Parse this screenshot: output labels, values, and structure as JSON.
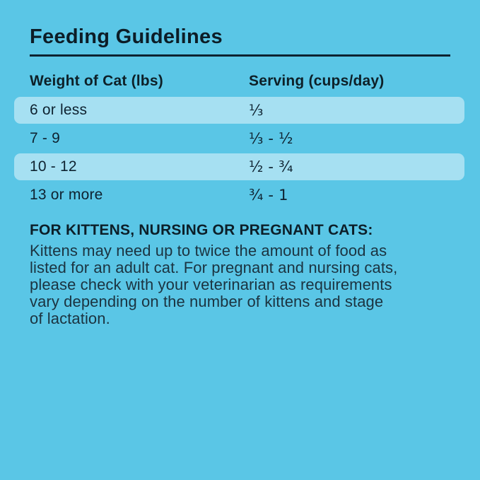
{
  "page": {
    "title": "Feeding Guidelines"
  },
  "table": {
    "headers": {
      "weight": "Weight of Cat (lbs)",
      "serving": "Serving (cups/day)"
    },
    "rows": [
      {
        "weight": "6 or less",
        "serving": "⅓"
      },
      {
        "weight": "7 - 9",
        "serving": "⅓ - ½"
      },
      {
        "weight": "10 - 12",
        "serving": "½ - ¾"
      },
      {
        "weight": "13 or more",
        "serving": "¾ - 1"
      }
    ]
  },
  "note": {
    "heading": "FOR KITTENS, NURSING OR PREGNANT CATS:",
    "body_lines": [
      "Kittens may need up to twice the amount of food as",
      "listed for an adult cat. For pregnant and nursing cats,",
      "please check with your veterinarian as requirements",
      "vary depending on the number of kittens and stage",
      "of lactation."
    ]
  },
  "colors": {
    "background": "#5ac6e6",
    "row_highlight": "#a6e0f2",
    "rule": "#0d2230",
    "heading_text": "#0c1d27",
    "body_text": "#1b3340"
  }
}
